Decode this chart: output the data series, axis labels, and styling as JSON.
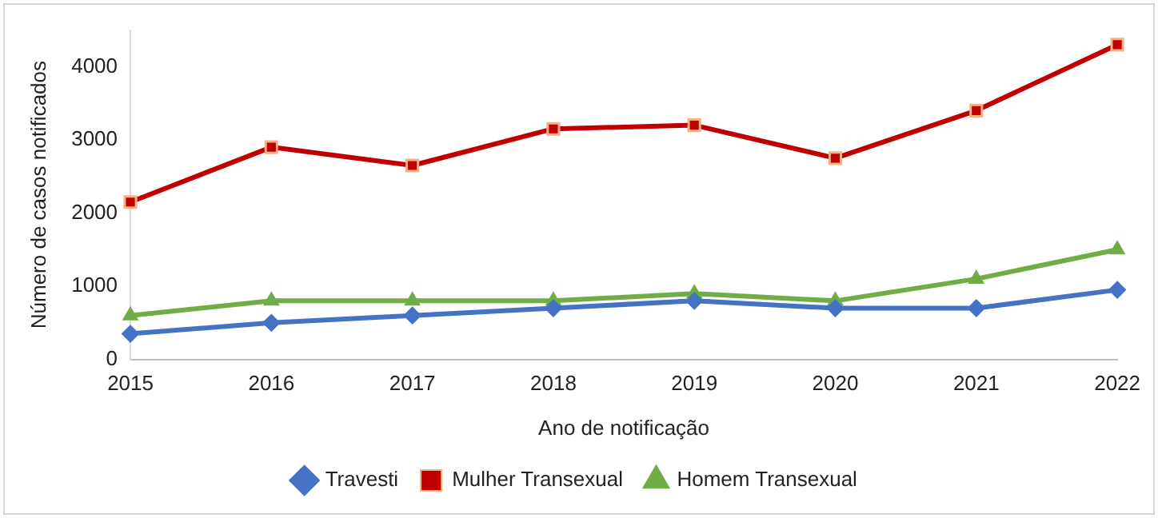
{
  "chart_data": {
    "type": "line",
    "xlabel": "Ano de notificação",
    "ylabel": "Número de casos notificados",
    "categories": [
      "2015",
      "2016",
      "2017",
      "2018",
      "2019",
      "2020",
      "2021",
      "2022"
    ],
    "series": [
      {
        "name": "Travesti",
        "color": "#4472c4",
        "marker": "diamond",
        "values": [
          350,
          500,
          600,
          700,
          800,
          700,
          700,
          950
        ]
      },
      {
        "name": "Mulher Transexual",
        "color": "#c00000",
        "marker": "square",
        "values": [
          2150,
          2900,
          2650,
          3150,
          3200,
          2750,
          3400,
          4300
        ]
      },
      {
        "name": "Homem Transexual",
        "color": "#70ad47",
        "marker": "triangle",
        "values": [
          600,
          800,
          800,
          800,
          900,
          800,
          1100,
          1500
        ]
      }
    ],
    "ylim": [
      0,
      4500
    ],
    "yticks": [
      0,
      1000,
      2000,
      3000,
      4000
    ],
    "grid": false,
    "legend": "bottom"
  }
}
